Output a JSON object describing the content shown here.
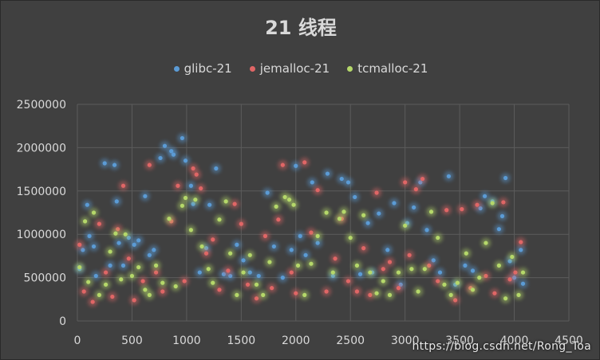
{
  "chart_data": {
    "type": "scatter",
    "title": "21 线程",
    "xlabel": "",
    "ylabel": "",
    "xlim": [
      0,
      4500
    ],
    "ylim": [
      0,
      2500000
    ],
    "x_ticks": [
      "0",
      "500",
      "1000",
      "1500",
      "2000",
      "2500",
      "3000",
      "3500",
      "4000",
      "4500"
    ],
    "y_ticks": [
      "0",
      "500000",
      "1000000",
      "1500000",
      "2000000",
      "2500000"
    ],
    "grid": true,
    "legend_position": "top",
    "series": [
      {
        "name": "glibc-21",
        "color": "#5b9bd5",
        "points": [
          [
            20,
            600000
          ],
          [
            50,
            820000
          ],
          [
            90,
            1340000
          ],
          [
            110,
            980000
          ],
          [
            150,
            860000
          ],
          [
            170,
            520000
          ],
          [
            250,
            1820000
          ],
          [
            300,
            640000
          ],
          [
            340,
            1800000
          ],
          [
            360,
            1380000
          ],
          [
            380,
            900000
          ],
          [
            420,
            640000
          ],
          [
            470,
            960000
          ],
          [
            520,
            880000
          ],
          [
            560,
            930000
          ],
          [
            620,
            1440000
          ],
          [
            660,
            760000
          ],
          [
            700,
            820000
          ],
          [
            760,
            1880000
          ],
          [
            800,
            2020000
          ],
          [
            860,
            1960000
          ],
          [
            880,
            1920000
          ],
          [
            960,
            2110000
          ],
          [
            990,
            1850000
          ],
          [
            1040,
            1560000
          ],
          [
            1060,
            1350000
          ],
          [
            1120,
            560000
          ],
          [
            1180,
            840000
          ],
          [
            1210,
            1340000
          ],
          [
            1270,
            1760000
          ],
          [
            1340,
            540000
          ],
          [
            1400,
            520000
          ],
          [
            1460,
            880000
          ],
          [
            1520,
            700000
          ],
          [
            1580,
            560000
          ],
          [
            1660,
            520000
          ],
          [
            1740,
            1480000
          ],
          [
            1800,
            860000
          ],
          [
            1880,
            500000
          ],
          [
            1960,
            820000
          ],
          [
            2000,
            1790000
          ],
          [
            2040,
            980000
          ],
          [
            2090,
            760000
          ],
          [
            2150,
            1600000
          ],
          [
            2200,
            900000
          ],
          [
            2290,
            1700000
          ],
          [
            2340,
            520000
          ],
          [
            2420,
            1640000
          ],
          [
            2480,
            1600000
          ],
          [
            2540,
            1430000
          ],
          [
            2590,
            540000
          ],
          [
            2660,
            1130000
          ],
          [
            2700,
            560000
          ],
          [
            2760,
            1240000
          ],
          [
            2840,
            820000
          ],
          [
            2900,
            1360000
          ],
          [
            2960,
            420000
          ],
          [
            3020,
            1130000
          ],
          [
            3080,
            1310000
          ],
          [
            3140,
            1600000
          ],
          [
            3200,
            1050000
          ],
          [
            3260,
            700000
          ],
          [
            3320,
            560000
          ],
          [
            3400,
            1670000
          ],
          [
            3460,
            420000
          ],
          [
            3550,
            640000
          ],
          [
            3620,
            580000
          ],
          [
            3690,
            1300000
          ],
          [
            3730,
            1440000
          ],
          [
            3800,
            1380000
          ],
          [
            3860,
            1060000
          ],
          [
            3890,
            1210000
          ],
          [
            3920,
            1650000
          ],
          [
            3960,
            690000
          ],
          [
            4000,
            500000
          ],
          [
            4060,
            820000
          ],
          [
            4080,
            430000
          ]
        ]
      },
      {
        "name": "jemalloc-21",
        "color": "#e06666",
        "points": [
          [
            20,
            880000
          ],
          [
            60,
            340000
          ],
          [
            140,
            220000
          ],
          [
            200,
            1120000
          ],
          [
            260,
            560000
          ],
          [
            320,
            280000
          ],
          [
            370,
            1060000
          ],
          [
            420,
            1560000
          ],
          [
            470,
            720000
          ],
          [
            520,
            240000
          ],
          [
            600,
            460000
          ],
          [
            660,
            1800000
          ],
          [
            720,
            560000
          ],
          [
            780,
            340000
          ],
          [
            860,
            1150000
          ],
          [
            920,
            1560000
          ],
          [
            980,
            460000
          ],
          [
            1060,
            1760000
          ],
          [
            1090,
            1690000
          ],
          [
            1130,
            1530000
          ],
          [
            1180,
            780000
          ],
          [
            1240,
            940000
          ],
          [
            1300,
            360000
          ],
          [
            1380,
            580000
          ],
          [
            1440,
            1350000
          ],
          [
            1500,
            1120000
          ],
          [
            1560,
            420000
          ],
          [
            1640,
            260000
          ],
          [
            1720,
            980000
          ],
          [
            1780,
            380000
          ],
          [
            1840,
            1170000
          ],
          [
            1880,
            1800000
          ],
          [
            1960,
            560000
          ],
          [
            2000,
            320000
          ],
          [
            2080,
            1830000
          ],
          [
            2140,
            1020000
          ],
          [
            2200,
            1510000
          ],
          [
            2280,
            340000
          ],
          [
            2360,
            720000
          ],
          [
            2420,
            1180000
          ],
          [
            2480,
            460000
          ],
          [
            2560,
            340000
          ],
          [
            2620,
            840000
          ],
          [
            2680,
            300000
          ],
          [
            2740,
            1480000
          ],
          [
            2800,
            600000
          ],
          [
            2860,
            680000
          ],
          [
            2940,
            380000
          ],
          [
            3000,
            1600000
          ],
          [
            3040,
            760000
          ],
          [
            3100,
            1520000
          ],
          [
            3160,
            1640000
          ],
          [
            3220,
            640000
          ],
          [
            3300,
            460000
          ],
          [
            3380,
            1280000
          ],
          [
            3460,
            240000
          ],
          [
            3520,
            1290000
          ],
          [
            3600,
            380000
          ],
          [
            3660,
            1340000
          ],
          [
            3740,
            520000
          ],
          [
            3820,
            320000
          ],
          [
            3900,
            1370000
          ],
          [
            3960,
            480000
          ],
          [
            4010,
            560000
          ],
          [
            4060,
            910000
          ]
        ]
      },
      {
        "name": "tcmalloc-21",
        "color": "#b5d86a",
        "points": [
          [
            20,
            620000
          ],
          [
            70,
            1150000
          ],
          [
            100,
            450000
          ],
          [
            150,
            1250000
          ],
          [
            200,
            300000
          ],
          [
            260,
            420000
          ],
          [
            300,
            800000
          ],
          [
            350,
            1010000
          ],
          [
            400,
            480000
          ],
          [
            440,
            1000000
          ],
          [
            500,
            520000
          ],
          [
            560,
            620000
          ],
          [
            620,
            360000
          ],
          [
            660,
            300000
          ],
          [
            720,
            640000
          ],
          [
            780,
            440000
          ],
          [
            840,
            1180000
          ],
          [
            900,
            400000
          ],
          [
            960,
            1330000
          ],
          [
            990,
            1420000
          ],
          [
            1040,
            1050000
          ],
          [
            1080,
            1400000
          ],
          [
            1140,
            860000
          ],
          [
            1200,
            600000
          ],
          [
            1240,
            440000
          ],
          [
            1300,
            1170000
          ],
          [
            1360,
            1380000
          ],
          [
            1400,
            780000
          ],
          [
            1460,
            300000
          ],
          [
            1520,
            560000
          ],
          [
            1580,
            760000
          ],
          [
            1640,
            420000
          ],
          [
            1700,
            300000
          ],
          [
            1760,
            680000
          ],
          [
            1820,
            1320000
          ],
          [
            1900,
            1430000
          ],
          [
            1940,
            1400000
          ],
          [
            1980,
            1340000
          ],
          [
            2020,
            640000
          ],
          [
            2080,
            300000
          ],
          [
            2140,
            660000
          ],
          [
            2200,
            980000
          ],
          [
            2280,
            1250000
          ],
          [
            2340,
            560000
          ],
          [
            2400,
            1180000
          ],
          [
            2440,
            1260000
          ],
          [
            2500,
            960000
          ],
          [
            2560,
            640000
          ],
          [
            2620,
            1220000
          ],
          [
            2680,
            560000
          ],
          [
            2740,
            320000
          ],
          [
            2800,
            460000
          ],
          [
            2860,
            300000
          ],
          [
            2940,
            560000
          ],
          [
            3000,
            1100000
          ],
          [
            3060,
            600000
          ],
          [
            3120,
            340000
          ],
          [
            3180,
            600000
          ],
          [
            3240,
            1260000
          ],
          [
            3300,
            960000
          ],
          [
            3360,
            420000
          ],
          [
            3420,
            300000
          ],
          [
            3480,
            440000
          ],
          [
            3560,
            780000
          ],
          [
            3620,
            360000
          ],
          [
            3680,
            500000
          ],
          [
            3740,
            900000
          ],
          [
            3800,
            1360000
          ],
          [
            3860,
            640000
          ],
          [
            3920,
            260000
          ],
          [
            3980,
            740000
          ],
          [
            4040,
            300000
          ],
          [
            4080,
            560000
          ]
        ]
      }
    ]
  },
  "watermark": "https://blog.csdn.net/Rong_Toa"
}
